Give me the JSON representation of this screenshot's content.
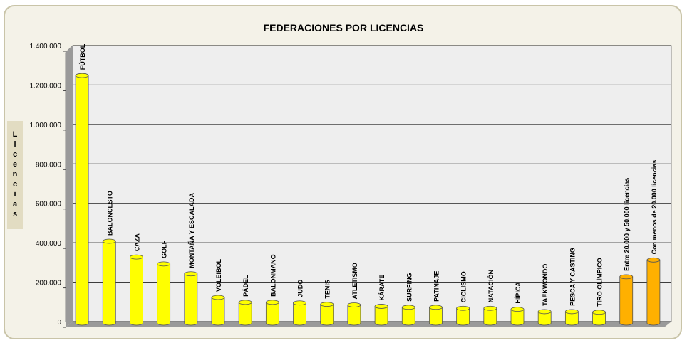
{
  "chart_data": {
    "type": "bar",
    "title": "FEDERACIONES POR LICENCIAS",
    "y_label": "Licencias",
    "categories": [
      "FÚTBOL",
      "BALONCESTO",
      "CAZA",
      "GOLF",
      "MONTAÑA Y ESCALADA",
      "VOLEIBOL",
      "PÁDEL",
      "BALONMANO",
      "JUDO",
      "TENIS",
      "ATLETISMO",
      "KÁRATE",
      "SURFING",
      "PATINAJE",
      "CICLISMO",
      "NATACIÓN",
      "HÍPICA",
      "TAEKWONDO",
      "PESCA Y CASTING",
      "TIRO OLÍMPICO",
      "Entre 20.000 y 50.000 licencias",
      "Con menos de 20.000 licencias"
    ],
    "values": [
      1255000,
      415000,
      335000,
      300000,
      250000,
      130000,
      105000,
      105000,
      102000,
      95000,
      92000,
      85000,
      80000,
      80000,
      75000,
      75000,
      70000,
      58000,
      58000,
      55000,
      235000,
      320000
    ],
    "colors": [
      "#ffff00",
      "#ffff00",
      "#ffff00",
      "#ffff00",
      "#ffff00",
      "#ffff00",
      "#ffff00",
      "#ffff00",
      "#ffff00",
      "#ffff00",
      "#ffff00",
      "#ffff00",
      "#ffff00",
      "#ffff00",
      "#ffff00",
      "#ffff00",
      "#ffff00",
      "#ffff00",
      "#ffff00",
      "#ffff00",
      "#ffb000",
      "#ffb000"
    ],
    "ylim": [
      0,
      1400000
    ],
    "yticks": [
      0,
      {
        "value": 200000,
        "label": "200.000"
      },
      {
        "value": 400000,
        "label": "400.000"
      },
      {
        "value": 600000,
        "label": "600.000"
      },
      {
        "value": 800000,
        "label": "800.000"
      },
      {
        "value": 1000000,
        "label": "1.000.000"
      },
      {
        "value": 1200000,
        "label": "1.200.000"
      },
      {
        "value": 1400000,
        "label": "1.400.000"
      }
    ],
    "grid": true
  }
}
